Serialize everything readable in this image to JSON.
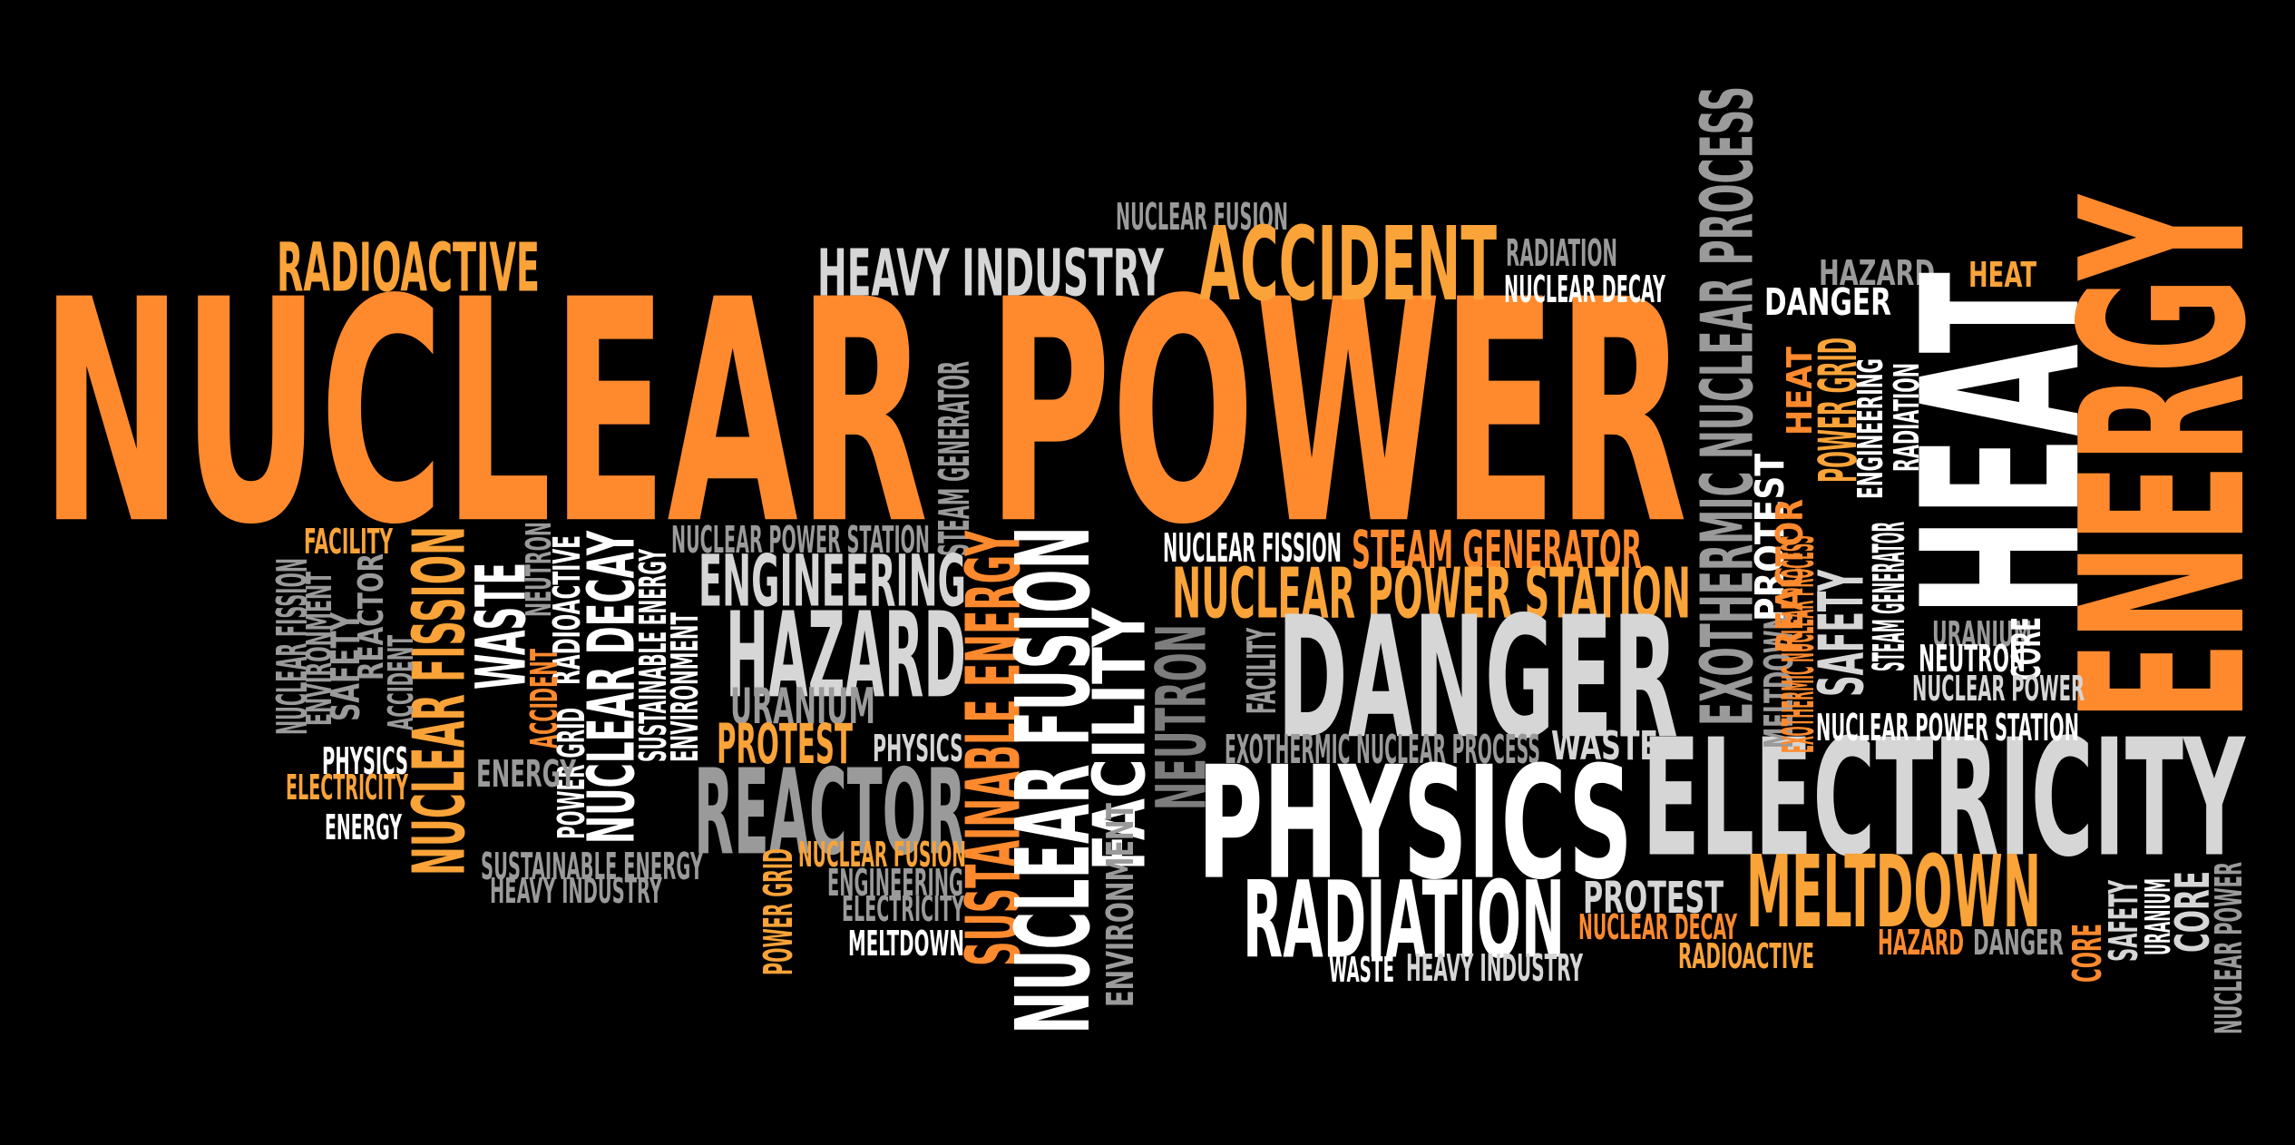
{
  "colors": {
    "orange": "#ff8a2e",
    "gold": "#f9a339",
    "white": "#ffffff",
    "lightgray": "#d6d6d6",
    "gray": "#9a9a9a",
    "darkgray": "#7d7d7d",
    "background": "#000000"
  },
  "words": [
    {
      "text": "NUCLEAR POWER",
      "color": "orange",
      "orientation": "horizontal"
    },
    {
      "text": "RADIOACTIVE",
      "color": "gold",
      "orientation": "horizontal"
    },
    {
      "text": "HEAVY INDUSTRY",
      "color": "lightgray",
      "orientation": "horizontal"
    },
    {
      "text": "NUCLEAR FUSION",
      "color": "gray",
      "orientation": "horizontal"
    },
    {
      "text": "ACCIDENT",
      "color": "gold",
      "orientation": "horizontal"
    },
    {
      "text": "RADIATION",
      "color": "gray",
      "orientation": "horizontal"
    },
    {
      "text": "NUCLEAR DECAY",
      "color": "white",
      "orientation": "horizontal"
    },
    {
      "text": "EXOTHERMIC NUCLEAR PROCESS",
      "color": "gray",
      "orientation": "vertical"
    },
    {
      "text": "HAZARD",
      "color": "gray",
      "orientation": "horizontal"
    },
    {
      "text": "HEAT",
      "color": "gold",
      "orientation": "horizontal"
    },
    {
      "text": "DANGER",
      "color": "white",
      "orientation": "horizontal"
    },
    {
      "text": "HEAT",
      "color": "white",
      "orientation": "vertical"
    },
    {
      "text": "ENERGY",
      "color": "orange",
      "orientation": "vertical"
    },
    {
      "text": "FACILITY",
      "color": "gold",
      "orientation": "horizontal"
    },
    {
      "text": "NUCLEAR FISSION",
      "color": "gold",
      "orientation": "vertical"
    },
    {
      "text": "NUCLEAR FISSION",
      "color": "gray",
      "orientation": "vertical"
    },
    {
      "text": "ENVIRONMENT",
      "color": "gray",
      "orientation": "vertical"
    },
    {
      "text": "SAFETY",
      "color": "gray",
      "orientation": "vertical"
    },
    {
      "text": "REACTOR",
      "color": "gray",
      "orientation": "vertical"
    },
    {
      "text": "ACCIDENT",
      "color": "gray",
      "orientation": "vertical"
    },
    {
      "text": "WASTE",
      "color": "white",
      "orientation": "vertical"
    },
    {
      "text": "NEUTRON",
      "color": "gray",
      "orientation": "vertical"
    },
    {
      "text": "RADIOACTIVE",
      "color": "white",
      "orientation": "vertical"
    },
    {
      "text": "ACCIDENT",
      "color": "orange",
      "orientation": "vertical"
    },
    {
      "text": "POWER GRID",
      "color": "white",
      "orientation": "vertical"
    },
    {
      "text": "NUCLEAR DECAY",
      "color": "white",
      "orientation": "vertical"
    },
    {
      "text": "SUSTAINABLE ENERGY",
      "color": "white",
      "orientation": "vertical"
    },
    {
      "text": "ENVIRONMENT",
      "color": "white",
      "orientation": "vertical"
    },
    {
      "text": "NUCLEAR POWER STATION",
      "color": "gray",
      "orientation": "horizontal"
    },
    {
      "text": "STEAM GENERATOR",
      "color": "gray",
      "orientation": "vertical"
    },
    {
      "text": "ENGINEERING",
      "color": "lightgray",
      "orientation": "horizontal"
    },
    {
      "text": "HAZARD",
      "color": "lightgray",
      "orientation": "horizontal"
    },
    {
      "text": "URANIUM",
      "color": "gray",
      "orientation": "horizontal"
    },
    {
      "text": "PROTEST",
      "color": "gold",
      "orientation": "horizontal"
    },
    {
      "text": "PHYSICS",
      "color": "lightgray",
      "orientation": "horizontal"
    },
    {
      "text": "REACTOR",
      "color": "gray",
      "orientation": "horizontal"
    },
    {
      "text": "NUCLEAR FUSION",
      "color": "gold",
      "orientation": "horizontal"
    },
    {
      "text": "ENGINEERING",
      "color": "gray",
      "orientation": "horizontal"
    },
    {
      "text": "ELECTRICITY",
      "color": "gray",
      "orientation": "horizontal"
    },
    {
      "text": "MELTDOWN",
      "color": "white",
      "orientation": "horizontal"
    },
    {
      "text": "POWER GRID",
      "color": "gold",
      "orientation": "vertical"
    },
    {
      "text": "PHYSICS",
      "color": "white",
      "orientation": "horizontal"
    },
    {
      "text": "ELECTRICITY",
      "color": "gold",
      "orientation": "horizontal"
    },
    {
      "text": "ENERGY",
      "color": "white",
      "orientation": "horizontal"
    },
    {
      "text": "ENERGY",
      "color": "gray",
      "orientation": "horizontal"
    },
    {
      "text": "SUSTAINABLE ENERGY",
      "color": "gray",
      "orientation": "horizontal"
    },
    {
      "text": "HEAVY INDUSTRY",
      "color": "gray",
      "orientation": "horizontal"
    },
    {
      "text": "SUSTAINABLE ENERGY",
      "color": "orange",
      "orientation": "vertical"
    },
    {
      "text": "NUCLEAR FUSION",
      "color": "white",
      "orientation": "vertical"
    },
    {
      "text": "FACILITY",
      "color": "white",
      "orientation": "vertical"
    },
    {
      "text": "ENVIRONMENT",
      "color": "gray",
      "orientation": "vertical"
    },
    {
      "text": "NEUTRON",
      "color": "darkgray",
      "orientation": "vertical"
    },
    {
      "text": "FACILITY",
      "color": "gray",
      "orientation": "vertical"
    },
    {
      "text": "NUCLEAR FISSION",
      "color": "white",
      "orientation": "horizontal"
    },
    {
      "text": "STEAM GENERATOR",
      "color": "orange",
      "orientation": "horizontal"
    },
    {
      "text": "NUCLEAR POWER STATION",
      "color": "gold",
      "orientation": "horizontal"
    },
    {
      "text": "DANGER",
      "color": "lightgray",
      "orientation": "horizontal"
    },
    {
      "text": "EXOTHERMIC NUCLEAR PROCESS",
      "color": "gray",
      "orientation": "horizontal"
    },
    {
      "text": "WASTE",
      "color": "lightgray",
      "orientation": "horizontal"
    },
    {
      "text": "PHYSICS",
      "color": "white",
      "orientation": "horizontal"
    },
    {
      "text": "ELECTRICITY",
      "color": "lightgray",
      "orientation": "horizontal"
    },
    {
      "text": "RADIATION",
      "color": "white",
      "orientation": "horizontal"
    },
    {
      "text": "PROTEST",
      "color": "lightgray",
      "orientation": "horizontal"
    },
    {
      "text": "NUCLEAR DECAY",
      "color": "orange",
      "orientation": "horizontal"
    },
    {
      "text": "MELTDOWN",
      "color": "gold",
      "orientation": "horizontal"
    },
    {
      "text": "RADIOACTIVE",
      "color": "gold",
      "orientation": "horizontal"
    },
    {
      "text": "WASTE",
      "color": "white",
      "orientation": "horizontal"
    },
    {
      "text": "HEAVY INDUSTRY",
      "color": "lightgray",
      "orientation": "horizontal"
    },
    {
      "text": "MELTDOWN",
      "color": "gray",
      "orientation": "vertical"
    },
    {
      "text": "PROTEST",
      "color": "white",
      "orientation": "vertical"
    },
    {
      "text": "REACTOR",
      "color": "orange",
      "orientation": "vertical"
    },
    {
      "text": "EXOTHERMIC NUCLEAR PROCESS",
      "color": "orange",
      "orientation": "vertical"
    },
    {
      "text": "HEAT",
      "color": "orange",
      "orientation": "vertical"
    },
    {
      "text": "POWER GRID",
      "color": "gold",
      "orientation": "vertical"
    },
    {
      "text": "SAFETY",
      "color": "lightgray",
      "orientation": "vertical"
    },
    {
      "text": "ENGINEERING",
      "color": "white",
      "orientation": "vertical"
    },
    {
      "text": "RADIATION",
      "color": "white",
      "orientation": "vertical"
    },
    {
      "text": "STEAM GENERATOR",
      "color": "white",
      "orientation": "vertical"
    },
    {
      "text": "URANIUM",
      "color": "gray",
      "orientation": "horizontal"
    },
    {
      "text": "CORE",
      "color": "white",
      "orientation": "vertical"
    },
    {
      "text": "NEUTRON",
      "color": "white",
      "orientation": "horizontal"
    },
    {
      "text": "NUCLEAR POWER",
      "color": "lightgray",
      "orientation": "horizontal"
    },
    {
      "text": "NUCLEAR POWER STATION",
      "color": "white",
      "orientation": "horizontal"
    },
    {
      "text": "HAZARD",
      "color": "orange",
      "orientation": "horizontal"
    },
    {
      "text": "DANGER",
      "color": "gray",
      "orientation": "horizontal"
    },
    {
      "text": "CORE",
      "color": "orange",
      "orientation": "vertical"
    },
    {
      "text": "SAFETY",
      "color": "lightgray",
      "orientation": "vertical"
    },
    {
      "text": "URANIUM",
      "color": "white",
      "orientation": "vertical"
    },
    {
      "text": "CORE",
      "color": "lightgray",
      "orientation": "vertical"
    },
    {
      "text": "NUCLEAR POWER",
      "color": "gray",
      "orientation": "vertical"
    }
  ]
}
